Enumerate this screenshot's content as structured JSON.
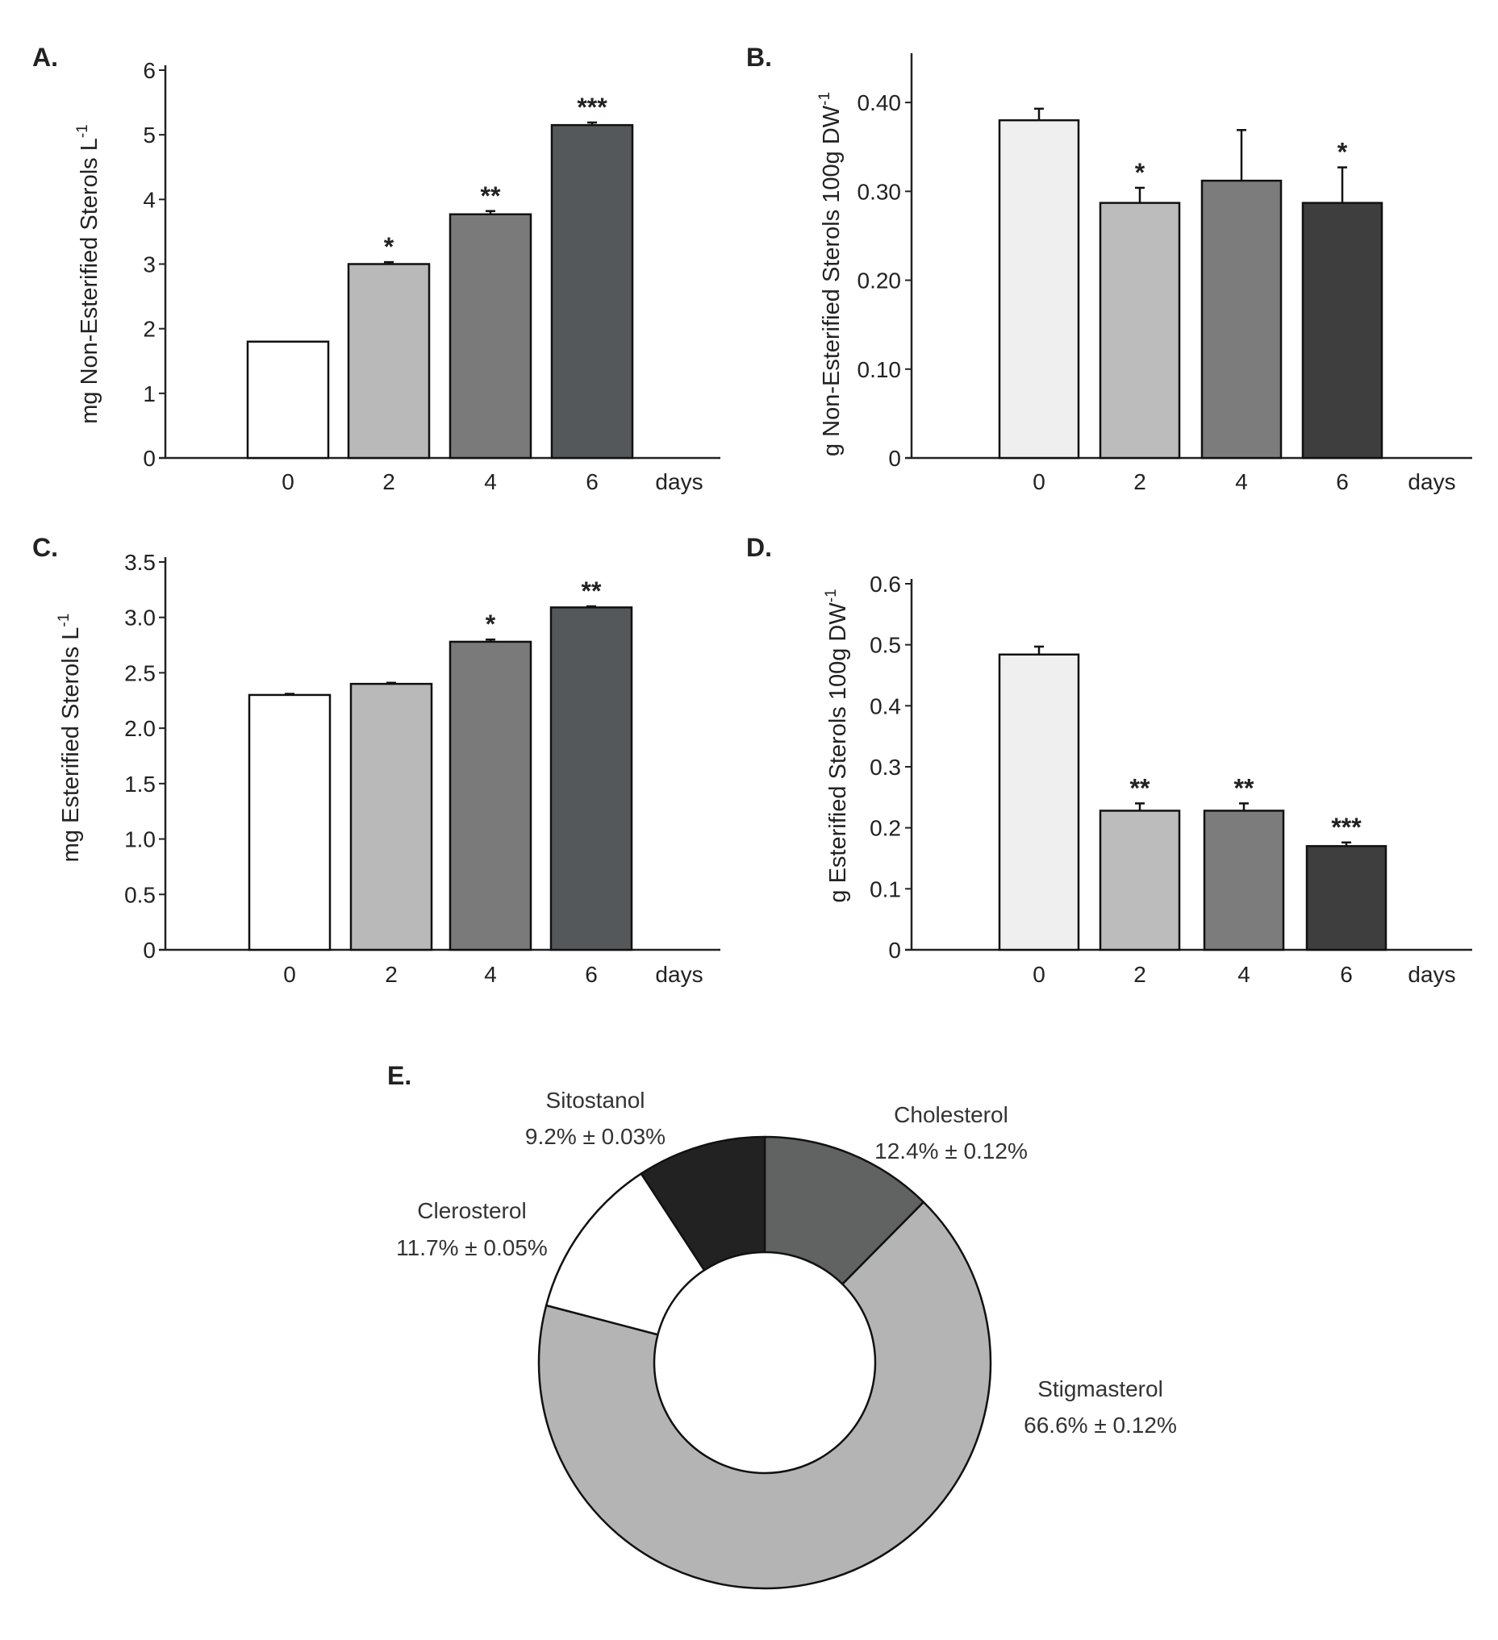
{
  "chart_data": [
    {
      "panel": "A.",
      "type": "bar",
      "categories": [
        "0",
        "2",
        "4",
        "6"
      ],
      "x_unit_label": "days",
      "values": [
        1.8,
        3.0,
        3.77,
        5.15
      ],
      "errors": [
        0.0,
        0.03,
        0.05,
        0.04
      ],
      "significance": [
        "",
        "*",
        "**",
        "***"
      ],
      "colors": [
        "#ffffff",
        "#b9b9b9",
        "#7a7a7a",
        "#55585a"
      ],
      "ylabel_main": "mg Non-Esterified Sterols L",
      "ylabel_sup": "-1",
      "ylim": [
        0,
        6
      ],
      "yticks": [
        "0",
        "1",
        "2",
        "3",
        "4",
        "5",
        "6"
      ]
    },
    {
      "panel": "B.",
      "type": "bar",
      "categories": [
        "0",
        "2",
        "4",
        "6"
      ],
      "x_unit_label": "days",
      "values": [
        0.38,
        0.287,
        0.312,
        0.287
      ],
      "errors": [
        0.013,
        0.017,
        0.057,
        0.04
      ],
      "significance": [
        "",
        "*",
        "",
        "*"
      ],
      "colors": [
        "#efefef",
        "#bcbcbc",
        "#7c7c7c",
        "#3e3e3e"
      ],
      "ylabel_main": "g Non-Esterified Sterols 100g DW",
      "ylabel_sup": "-1",
      "ylim": [
        0,
        0.45
      ],
      "ytick_values": [
        0,
        0.1,
        0.2,
        0.3,
        0.4
      ],
      "yticks": [
        "0",
        "0.10",
        "0.20",
        "0.30",
        "0.40"
      ]
    },
    {
      "panel": "C.",
      "type": "bar",
      "categories": [
        "0",
        "2",
        "4",
        "6"
      ],
      "x_unit_label": "days",
      "values": [
        2.3,
        2.4,
        2.78,
        3.09
      ],
      "errors": [
        0.01,
        0.01,
        0.02,
        0.01
      ],
      "significance": [
        "",
        "",
        "*",
        "**"
      ],
      "colors": [
        "#ffffff",
        "#b9b9b9",
        "#7a7a7a",
        "#55585a"
      ],
      "ylabel_main": "mg Esterified Sterols L",
      "ylabel_sup": "-1",
      "ylim": [
        0,
        3.5
      ],
      "ytick_values": [
        0,
        0.5,
        1.0,
        1.5,
        2.0,
        2.5,
        3.0,
        3.5
      ],
      "yticks": [
        "0",
        "0.5",
        "1.0",
        "1.5",
        "2.0",
        "2.5",
        "3.0",
        "3.5"
      ]
    },
    {
      "panel": "D.",
      "type": "bar",
      "categories": [
        "0",
        "2",
        "4",
        "6"
      ],
      "x_unit_label": "days",
      "values": [
        0.484,
        0.228,
        0.228,
        0.17
      ],
      "errors": [
        0.013,
        0.012,
        0.012,
        0.006
      ],
      "significance": [
        "",
        "**",
        "**",
        "***"
      ],
      "colors": [
        "#efefef",
        "#bcbcbc",
        "#7c7c7c",
        "#3e3e3e"
      ],
      "ylabel_main": "g Esterified Sterols 100g DW",
      "ylabel_sup": "-1",
      "ylim": [
        0,
        0.6
      ],
      "ytick_values": [
        0,
        0.1,
        0.2,
        0.3,
        0.4,
        0.5,
        0.6
      ],
      "yticks": [
        "0",
        "0.1",
        "0.2",
        "0.3",
        "0.4",
        "0.5",
        "0.6"
      ]
    },
    {
      "panel": "E.",
      "type": "pie",
      "style": "donut",
      "slices": [
        {
          "name": "Cholesterol",
          "value": 12.4,
          "label": "12.4% ± 0.12%",
          "color": "#616262"
        },
        {
          "name": "Stigmasterol",
          "value": 66.6,
          "label": "66.6% ± 0.12%",
          "color": "#b4b4b4"
        },
        {
          "name": "Clerosterol",
          "value": 11.7,
          "label": "11.7% ± 0.05%",
          "color": "#ffffff"
        },
        {
          "name": "Sitostanol",
          "value": 9.2,
          "label": "9.2% ± 0.03%",
          "color": "#222222"
        }
      ]
    }
  ]
}
